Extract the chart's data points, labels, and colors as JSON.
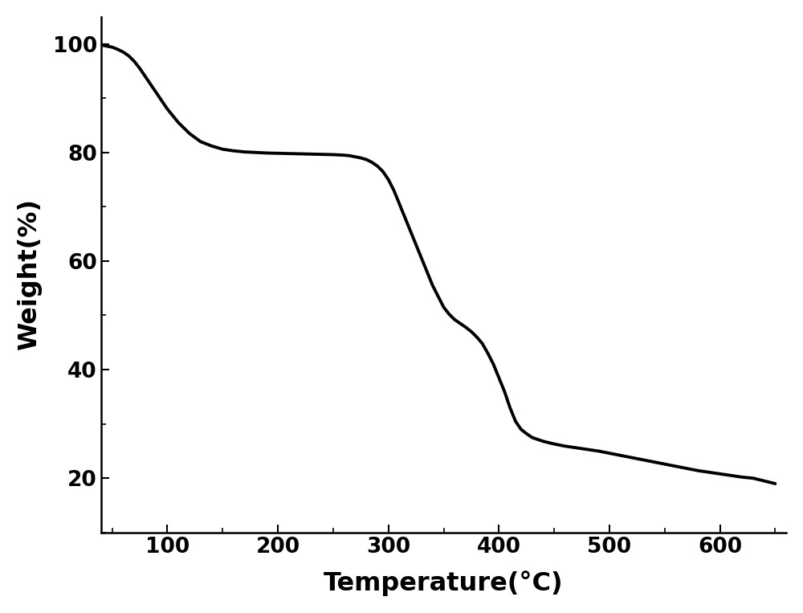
{
  "xlabel": "Temperature(°C)",
  "ylabel": "Weight(%)",
  "xlim": [
    40,
    660
  ],
  "ylim": [
    10,
    105
  ],
  "xticks": [
    100,
    200,
    300,
    400,
    500,
    600
  ],
  "yticks": [
    20,
    40,
    60,
    80,
    100
  ],
  "line_color": "#000000",
  "line_width": 2.8,
  "background_color": "#ffffff",
  "curve_x": [
    40,
    45,
    50,
    55,
    60,
    65,
    70,
    75,
    80,
    85,
    90,
    95,
    100,
    110,
    120,
    130,
    140,
    150,
    160,
    170,
    180,
    190,
    200,
    210,
    220,
    230,
    240,
    250,
    260,
    265,
    270,
    275,
    280,
    285,
    290,
    295,
    300,
    305,
    310,
    315,
    320,
    325,
    330,
    335,
    340,
    345,
    350,
    355,
    360,
    365,
    370,
    375,
    380,
    385,
    390,
    395,
    400,
    405,
    410,
    415,
    420,
    425,
    430,
    440,
    450,
    460,
    470,
    480,
    490,
    500,
    510,
    520,
    530,
    540,
    550,
    560,
    570,
    580,
    590,
    600,
    610,
    620,
    630,
    640,
    650
  ],
  "curve_y": [
    99.8,
    99.6,
    99.4,
    99.0,
    98.5,
    97.8,
    96.8,
    95.5,
    94.0,
    92.5,
    91.0,
    89.5,
    88.0,
    85.5,
    83.5,
    82.0,
    81.2,
    80.6,
    80.3,
    80.1,
    80.0,
    79.9,
    79.85,
    79.8,
    79.75,
    79.7,
    79.65,
    79.6,
    79.5,
    79.4,
    79.2,
    79.0,
    78.7,
    78.2,
    77.5,
    76.5,
    75.0,
    73.0,
    70.5,
    68.0,
    65.5,
    63.0,
    60.5,
    58.0,
    55.5,
    53.5,
    51.5,
    50.2,
    49.2,
    48.5,
    47.8,
    47.0,
    46.0,
    44.8,
    43.0,
    41.0,
    38.5,
    36.0,
    33.0,
    30.5,
    29.0,
    28.2,
    27.5,
    26.8,
    26.3,
    25.9,
    25.6,
    25.3,
    25.0,
    24.6,
    24.2,
    23.8,
    23.4,
    23.0,
    22.6,
    22.2,
    21.8,
    21.4,
    21.1,
    20.8,
    20.5,
    20.2,
    20.0,
    19.5,
    19.0
  ]
}
